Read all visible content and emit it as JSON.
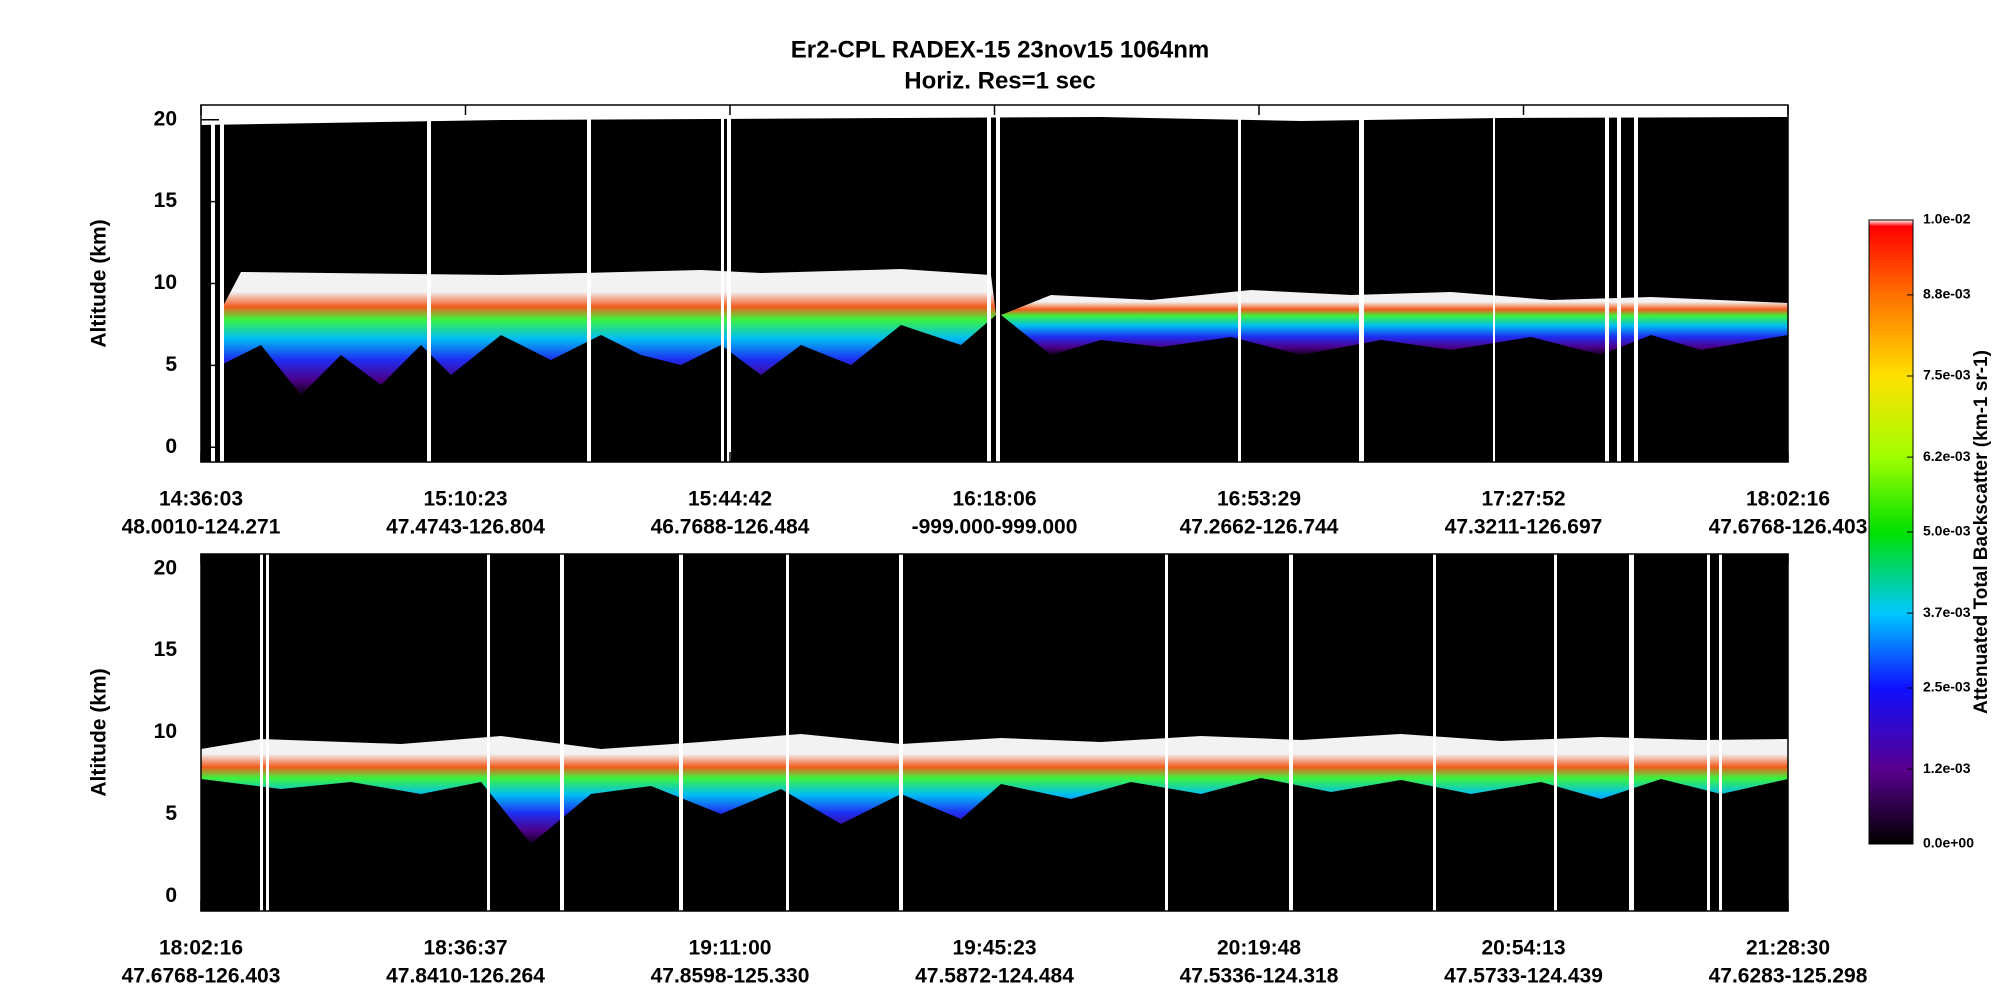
{
  "chart_data": [
    {
      "type": "heatmap",
      "title": "Er2-CPL  RADEX-15  23nov15  1064nm",
      "subtitle": "Horiz. Res=1 sec",
      "ylabel": "Altitude (km)",
      "categories": [
        "14:36:03",
        "15:10:23",
        "15:44:42",
        "16:18:06",
        "16:53:29",
        "17:27:52",
        "18:02:16"
      ],
      "category_sublabels": [
        "48.0010-124.271",
        "47.4743-126.804",
        "46.7688-126.484",
        "-999.000-999.000",
        "47.2662-126.744",
        "47.3211-126.697",
        "47.6768-126.403"
      ],
      "ylim": [
        -0.9,
        20.9
      ],
      "yticks": [
        0,
        5,
        10,
        15,
        20
      ],
      "colorbar": {
        "label": "Attenuated Total Backscatter (km-1 sr-1)",
        "lim": [
          0,
          0.01
        ],
        "ticks": [
          {
            "value": 0,
            "label": "0.0e+00"
          },
          {
            "value": 0.0012,
            "label": "1.2e-03"
          },
          {
            "value": 0.0025,
            "label": "2.5e-03"
          },
          {
            "value": 0.0037,
            "label": "3.7e-03"
          },
          {
            "value": 0.005,
            "label": "5.0e-03"
          },
          {
            "value": 0.0062,
            "label": "6.2e-03"
          },
          {
            "value": 0.0075,
            "label": "7.5e-03"
          },
          {
            "value": 0.0088,
            "label": "8.8e-03"
          },
          {
            "value": 0.01,
            "label": "1.0e-02"
          }
        ]
      }
    },
    {
      "type": "heatmap",
      "ylabel": "Altitude (km)",
      "categories": [
        "18:02:16",
        "18:36:37",
        "19:11:00",
        "19:45:23",
        "20:19:48",
        "20:54:13",
        "21:28:30"
      ],
      "category_sublabels": [
        "47.6768-126.403",
        "47.8410-126.264",
        "47.8598-125.330",
        "47.5872-124.484",
        "47.5336-124.318",
        "47.5733-124.439",
        "47.6283-125.298"
      ],
      "ylim": [
        -0.9,
        20.9
      ],
      "yticks": [
        0,
        5,
        10,
        15,
        20
      ]
    }
  ]
}
